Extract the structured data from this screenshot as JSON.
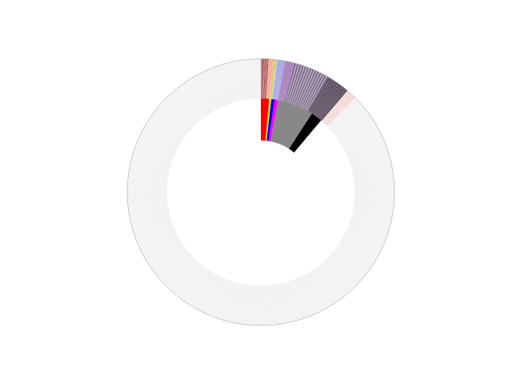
{
  "chart_data": {
    "type": "sunburst",
    "title": "",
    "legend": "none",
    "start": "top",
    "direction": "clockwise",
    "inner_ring": [
      {
        "color": "#ff0000",
        "value": 5.0
      },
      {
        "color": "#ff8000",
        "value": 0.5
      },
      {
        "color": "#ffff00",
        "value": 0.7
      },
      {
        "color": "#00b000",
        "value": 0.3
      },
      {
        "color": "#0000ff",
        "value": 2.0
      },
      {
        "color": "#ff00ff",
        "value": 2.2
      },
      {
        "color": "#888888",
        "value": 22.3
      },
      {
        "color": "#000000",
        "value": 7.0
      }
    ],
    "outer_ring": [
      {
        "value": 3.2,
        "palette": [
          "#8a3434",
          "#e09a9a",
          "#b55050",
          "#f4c8c8",
          "#6e2020",
          "#d27a7a"
        ]
      },
      {
        "value": 2.3,
        "palette": [
          "#f08c7c",
          "#fbd0c4",
          "#e86a5a",
          "#fce4dc"
        ]
      },
      {
        "value": 0.9,
        "palette": [
          "#d6c23a",
          "#f5ec9a",
          "#b9a52c"
        ]
      },
      {
        "value": 0.7,
        "palette": [
          "#a8c878",
          "#e4efc9"
        ]
      },
      {
        "value": 3.4,
        "palette": [
          "#9a9ae6",
          "#d8d8fa",
          "#7070c8",
          "#c0c0f0"
        ]
      },
      {
        "value": 4.4,
        "palette": [
          "#8a5aa0",
          "#e0cbe8",
          "#6e3e86",
          "#c7a8d6",
          "#a07ab8"
        ]
      },
      {
        "value": 15.0,
        "palette": [
          "#3a2a48",
          "#b8a8c8",
          "#6e5878",
          "#e8dcec",
          "#8a7a9a",
          "#d8c8dc",
          "#5a4868"
        ]
      },
      {
        "value": 10.5,
        "palette": [
          "#1a141e",
          "#8a7a8e",
          "#3a2a40",
          "#c8b8cc",
          "#2a2030",
          "#6e5e72"
        ]
      },
      {
        "value": 4.6,
        "palette": [
          "#f4d8d0",
          "#fcecea",
          "#e8c4c8",
          "#f8e4dc"
        ]
      }
    ],
    "remainder_color": "#f5f5f5"
  }
}
